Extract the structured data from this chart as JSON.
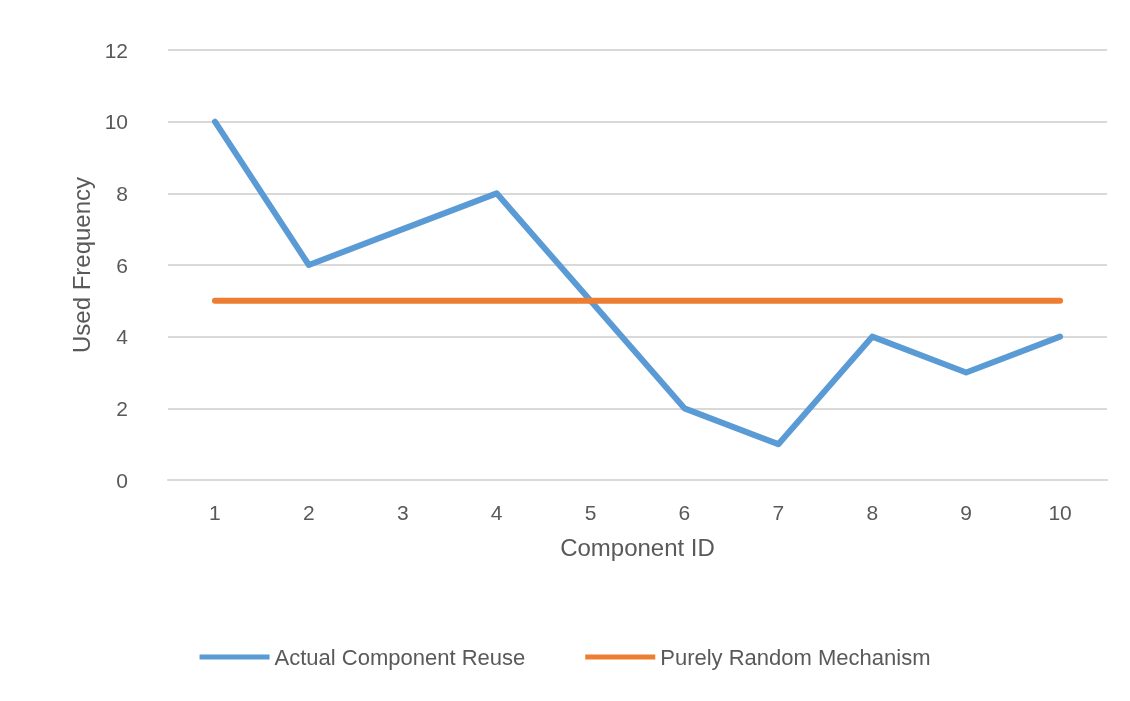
{
  "chart_data": {
    "type": "line",
    "xlabel": "Component ID",
    "ylabel": "Used Frequency",
    "categories": [
      "1",
      "2",
      "3",
      "4",
      "5",
      "6",
      "7",
      "8",
      "9",
      "10"
    ],
    "series": [
      {
        "name": "Actual Component Reuse",
        "color": "#5b9bd5",
        "values": [
          10,
          6,
          7,
          8,
          5,
          2,
          1,
          4,
          3,
          4
        ]
      },
      {
        "name": "Purely Random Mechanism",
        "color": "#ed7d31",
        "values": [
          5,
          5,
          5,
          5,
          5,
          5,
          5,
          5,
          5,
          5
        ]
      }
    ],
    "ylim": [
      0,
      12
    ],
    "yticks": [
      0,
      2,
      4,
      6,
      8,
      10,
      12
    ],
    "grid": "y",
    "legend": "bottom",
    "marker": "none",
    "line_style": "solid"
  }
}
